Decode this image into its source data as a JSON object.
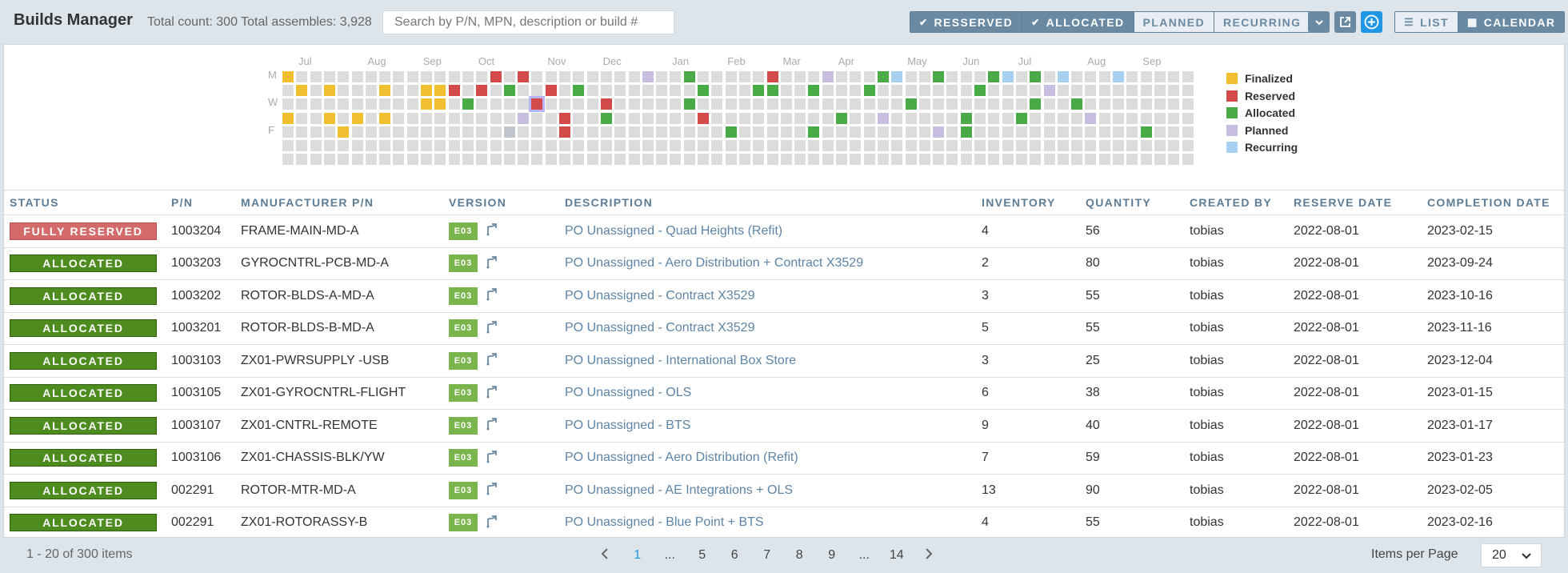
{
  "header": {
    "title": "Builds Manager",
    "counts": "Total count: 300 Total assembles: 3,928",
    "search_placeholder": "Search by P/N, MPN, description or build #",
    "filters": [
      {
        "label": "RESSERVED",
        "checked": true
      },
      {
        "label": "ALLOCATED",
        "checked": true
      },
      {
        "label": "PLANNED",
        "checked": false
      },
      {
        "label": "RECURRING",
        "checked": false
      }
    ],
    "views": [
      {
        "label": "LIST",
        "icon": "list-icon",
        "active": false
      },
      {
        "label": "CALENDAR",
        "icon": "grid-icon",
        "active": true
      }
    ],
    "actions": [
      "chevron-down-icon",
      "external-link-icon",
      "add-circle-icon"
    ]
  },
  "calendar": {
    "months": [
      "Jul",
      "Aug",
      "Sep",
      "Oct",
      "Nov",
      "Dec",
      "Jan",
      "Feb",
      "Mar",
      "Apr",
      "May",
      "Jun",
      "Jul",
      "Aug",
      "Sep"
    ],
    "day_labels": [
      "M",
      "W",
      "F"
    ],
    "week_count": 66,
    "legend": [
      {
        "key": "finalized",
        "label": "Finalized",
        "color": "#f0c030"
      },
      {
        "key": "reserved",
        "label": "Reserved",
        "color": "#d44a4a"
      },
      {
        "key": "allocated",
        "label": "Allocated",
        "color": "#4aaa48"
      },
      {
        "key": "planned",
        "label": "Planned",
        "color": "#c8bfe0"
      },
      {
        "key": "recurring",
        "label": "Recurring",
        "color": "#a8d0f0"
      }
    ],
    "empty_color": "#dcdcdc",
    "past_color": "#c0c6cc",
    "marked_days": [
      {
        "week": 0,
        "day": 0,
        "status": "finalized"
      },
      {
        "week": 1,
        "day": 1,
        "status": "finalized"
      },
      {
        "week": 3,
        "day": 1,
        "status": "finalized"
      },
      {
        "week": 3,
        "day": 3,
        "status": "finalized"
      },
      {
        "week": 4,
        "day": 4,
        "status": "finalized"
      },
      {
        "week": 5,
        "day": 3,
        "status": "finalized"
      },
      {
        "week": 7,
        "day": 1,
        "status": "finalized"
      },
      {
        "week": 7,
        "day": 3,
        "status": "finalized"
      },
      {
        "week": 0,
        "day": 3,
        "status": "finalized"
      },
      {
        "week": 10,
        "day": 1,
        "status": "finalized"
      },
      {
        "week": 10,
        "day": 2,
        "status": "finalized"
      },
      {
        "week": 11,
        "day": 1,
        "status": "finalized"
      },
      {
        "week": 11,
        "day": 2,
        "status": "finalized"
      },
      {
        "week": 12,
        "day": 1,
        "status": "reserved"
      },
      {
        "week": 13,
        "day": 2,
        "status": "allocated"
      },
      {
        "week": 14,
        "day": 1,
        "status": "reserved"
      },
      {
        "week": 15,
        "day": 0,
        "status": "reserved"
      },
      {
        "week": 16,
        "day": 1,
        "status": "allocated"
      },
      {
        "week": 17,
        "day": 0,
        "status": "reserved"
      },
      {
        "week": 16,
        "day": 4,
        "status": "past"
      },
      {
        "week": 17,
        "day": 3,
        "status": "planned"
      },
      {
        "week": 18,
        "day": 2,
        "status": "reserved"
      },
      {
        "week": 19,
        "day": 1,
        "status": "reserved"
      },
      {
        "week": 20,
        "day": 3,
        "status": "reserved"
      },
      {
        "week": 20,
        "day": 4,
        "status": "reserved"
      },
      {
        "week": 21,
        "day": 1,
        "status": "allocated"
      },
      {
        "week": 23,
        "day": 2,
        "status": "reserved"
      },
      {
        "week": 23,
        "day": 3,
        "status": "allocated"
      },
      {
        "week": 26,
        "day": 0,
        "status": "planned"
      },
      {
        "week": 29,
        "day": 0,
        "status": "allocated"
      },
      {
        "week": 29,
        "day": 2,
        "status": "allocated"
      },
      {
        "week": 30,
        "day": 1,
        "status": "allocated"
      },
      {
        "week": 30,
        "day": 3,
        "status": "reserved"
      },
      {
        "week": 32,
        "day": 4,
        "status": "allocated"
      },
      {
        "week": 34,
        "day": 1,
        "status": "allocated"
      },
      {
        "week": 35,
        "day": 0,
        "status": "reserved"
      },
      {
        "week": 35,
        "day": 1,
        "status": "allocated"
      },
      {
        "week": 38,
        "day": 1,
        "status": "allocated"
      },
      {
        "week": 38,
        "day": 4,
        "status": "allocated"
      },
      {
        "week": 39,
        "day": 0,
        "status": "planned"
      },
      {
        "week": 40,
        "day": 3,
        "status": "allocated"
      },
      {
        "week": 42,
        "day": 1,
        "status": "allocated"
      },
      {
        "week": 43,
        "day": 0,
        "status": "allocated"
      },
      {
        "week": 43,
        "day": 3,
        "status": "planned"
      },
      {
        "week": 44,
        "day": 0,
        "status": "recurring"
      },
      {
        "week": 45,
        "day": 2,
        "status": "allocated"
      },
      {
        "week": 47,
        "day": 0,
        "status": "allocated"
      },
      {
        "week": 47,
        "day": 4,
        "status": "planned"
      },
      {
        "week": 49,
        "day": 3,
        "status": "allocated"
      },
      {
        "week": 49,
        "day": 4,
        "status": "allocated"
      },
      {
        "week": 50,
        "day": 1,
        "status": "allocated"
      },
      {
        "week": 51,
        "day": 0,
        "status": "allocated"
      },
      {
        "week": 52,
        "day": 0,
        "status": "recurring"
      },
      {
        "week": 53,
        "day": 3,
        "status": "allocated"
      },
      {
        "week": 54,
        "day": 0,
        "status": "allocated"
      },
      {
        "week": 54,
        "day": 2,
        "status": "allocated"
      },
      {
        "week": 55,
        "day": 1,
        "status": "planned"
      },
      {
        "week": 56,
        "day": 0,
        "status": "recurring"
      },
      {
        "week": 57,
        "day": 2,
        "status": "allocated"
      },
      {
        "week": 58,
        "day": 3,
        "status": "planned"
      },
      {
        "week": 60,
        "day": 0,
        "status": "recurring"
      },
      {
        "week": 62,
        "day": 4,
        "status": "allocated"
      }
    ],
    "highlighted_day": {
      "week": 18,
      "day": 2
    }
  },
  "table": {
    "columns": [
      "STATUS",
      "P/N",
      "MANUFACTURER P/N",
      "VERSION",
      "DESCRIPTION",
      "INVENTORY",
      "QUANTITY",
      "CREATED BY",
      "RESERVE DATE",
      "COMPLETION DATE"
    ],
    "rows": [
      {
        "status": "FULLY RESERVED",
        "status_type": "fully",
        "pn": "1003204",
        "mpn": "FRAME-MAIN-MD-A",
        "version": "E03",
        "description": "PO Unassigned - Quad Heights (Refit)",
        "inventory": "4",
        "quantity": "56",
        "created_by": "tobias",
        "reserve_date": "2022-08-01",
        "completion_date": "2023-02-15"
      },
      {
        "status": "ALLOCATED",
        "status_type": "allocated",
        "pn": "1003203",
        "mpn": "GYROCNTRL-PCB-MD-A",
        "version": "E03",
        "description": "PO Unassigned - Aero Distribution + Contract X3529",
        "inventory": "2",
        "quantity": "80",
        "created_by": "tobias",
        "reserve_date": "2022-08-01",
        "completion_date": "2023-09-24"
      },
      {
        "status": "ALLOCATED",
        "status_type": "allocated",
        "pn": "1003202",
        "mpn": "ROTOR-BLDS-A-MD-A",
        "version": "E03",
        "description": "PO Unassigned - Contract X3529",
        "inventory": "3",
        "quantity": "55",
        "created_by": "tobias",
        "reserve_date": "2022-08-01",
        "completion_date": "2023-10-16"
      },
      {
        "status": "ALLOCATED",
        "status_type": "allocated",
        "pn": "1003201",
        "mpn": "ROTOR-BLDS-B-MD-A",
        "version": "E03",
        "description": "PO Unassigned - Contract X3529",
        "inventory": "5",
        "quantity": "55",
        "created_by": "tobias",
        "reserve_date": "2022-08-01",
        "completion_date": "2023-11-16"
      },
      {
        "status": "ALLOCATED",
        "status_type": "allocated",
        "pn": "1003103",
        "mpn": "ZX01-PWRSUPPLY -USB",
        "version": "E03",
        "description": "PO Unassigned - International Box Store",
        "inventory": "3",
        "quantity": "25",
        "created_by": "tobias",
        "reserve_date": "2022-08-01",
        "completion_date": "2023-12-04"
      },
      {
        "status": "ALLOCATED",
        "status_type": "allocated",
        "pn": "1003105",
        "mpn": "ZX01-GYROCNTRL-FLIGHT",
        "version": "E03",
        "description": "PO Unassigned - OLS",
        "inventory": "6",
        "quantity": "38",
        "created_by": "tobias",
        "reserve_date": "2022-08-01",
        "completion_date": "2023-01-15"
      },
      {
        "status": "ALLOCATED",
        "status_type": "allocated",
        "pn": "1003107",
        "mpn": "ZX01-CNTRL-REMOTE",
        "version": "E03",
        "description": "PO Unassigned - BTS",
        "inventory": "9",
        "quantity": "40",
        "created_by": "tobias",
        "reserve_date": "2022-08-01",
        "completion_date": "2023-01-17"
      },
      {
        "status": "ALLOCATED",
        "status_type": "allocated",
        "pn": "1003106",
        "mpn": "ZX01-CHASSIS-BLK/YW",
        "version": "E03",
        "description": "PO Unassigned - Aero Distribution (Refit)",
        "inventory": "7",
        "quantity": "59",
        "created_by": "tobias",
        "reserve_date": "2022-08-01",
        "completion_date": "2023-01-23"
      },
      {
        "status": "ALLOCATED",
        "status_type": "allocated",
        "pn": "002291",
        "mpn": "ROTOR-MTR-MD-A",
        "version": "E03",
        "description": "PO Unassigned - AE Integrations + OLS",
        "inventory": "13",
        "quantity": "90",
        "created_by": "tobias",
        "reserve_date": "2022-08-01",
        "completion_date": "2023-02-05"
      },
      {
        "status": "ALLOCATED",
        "status_type": "allocated",
        "pn": "002291",
        "mpn": "ZX01-ROTORASSY-B",
        "version": "E03",
        "description": "PO Unassigned - Blue Point + BTS",
        "inventory": "4",
        "quantity": "55",
        "created_by": "tobias",
        "reserve_date": "2022-08-01",
        "completion_date": "2023-02-16"
      }
    ]
  },
  "footer": {
    "range": "1 - 20 of 300 items",
    "pages": [
      "1",
      "...",
      "5",
      "6",
      "7",
      "8",
      "9",
      "...",
      "14"
    ],
    "current_page": "1",
    "items_per_page_label": "Items per Page",
    "items_per_page": "20"
  }
}
